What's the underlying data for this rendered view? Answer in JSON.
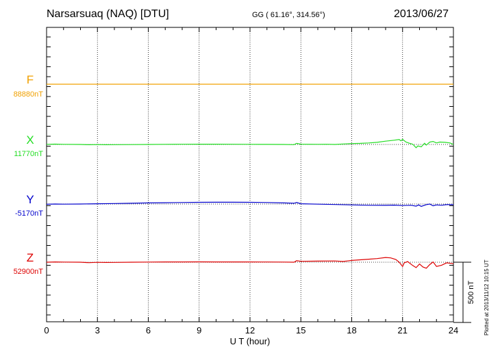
{
  "header": {
    "title": "Narsarsuaq (NAQ)  [DTU]",
    "coords": "GG ( 61.16°, 314.56°)",
    "date": "2013/06/27"
  },
  "footer": {
    "plotted": "Plotted at 2013/11/12 10:15 UT"
  },
  "colors": {
    "F": "#f0a000",
    "X": "#22dd22",
    "Y": "#0000cc",
    "Z": "#dd0000",
    "axis": "#000000"
  },
  "chart_data": {
    "type": "line",
    "title": "Narsarsuaq (NAQ)  [DTU]",
    "xlabel": "U T (hour)",
    "xlim": [
      0,
      24
    ],
    "xticks": [
      0,
      3,
      6,
      9,
      12,
      15,
      18,
      21,
      24
    ],
    "grid": true,
    "scale_bar": {
      "label": "500 nT",
      "value_nT": 500
    },
    "series": [
      {
        "name": "F",
        "baseline_label": "88880nT",
        "baseline": 88880,
        "color": "#f0a000",
        "x": [
          0,
          24
        ],
        "dev": [
          0,
          0
        ]
      },
      {
        "name": "X",
        "baseline_label": "11770nT",
        "baseline": 11770,
        "color": "#22dd22",
        "x": [
          0,
          0.5,
          1,
          2,
          2.5,
          3,
          3.5,
          4,
          5,
          6,
          7,
          8,
          9,
          10,
          11,
          12,
          13,
          14,
          14.6,
          14.75,
          15,
          16,
          16.5,
          17,
          17.5,
          18,
          18.5,
          19,
          19.5,
          20,
          20.5,
          20.8,
          20.9,
          21,
          21.2,
          21.4,
          21.6,
          21.8,
          21.9,
          22.1,
          22.3,
          22.4,
          22.6,
          22.8,
          23,
          23.2,
          23.5,
          23.8,
          24
        ],
        "dev": [
          2,
          6,
          2,
          0,
          -5,
          -2,
          -5,
          -3,
          -2,
          0,
          2,
          3,
          4,
          4,
          3,
          2,
          1,
          0,
          -3,
          18,
          5,
          2,
          3,
          0,
          8,
          15,
          18,
          25,
          35,
          55,
          70,
          82,
          60,
          85,
          40,
          20,
          5,
          -55,
          -25,
          -40,
          20,
          -10,
          40,
          50,
          25,
          40,
          35,
          25,
          0
        ]
      },
      {
        "name": "Y",
        "baseline_label": "-5170nT",
        "baseline": -5170,
        "color": "#0000cc",
        "x": [
          0,
          0.5,
          1,
          2,
          3,
          4,
          5,
          6,
          7,
          8,
          9,
          10,
          11,
          12,
          13,
          14,
          14.6,
          14.75,
          15,
          16,
          17,
          18,
          19,
          20,
          20.5,
          21,
          21.5,
          21.8,
          21.95,
          22.1,
          22.4,
          22.6,
          22.8,
          23,
          23.3,
          23.6,
          24
        ],
        "dev": [
          -5,
          0,
          -2,
          0,
          5,
          8,
          12,
          18,
          22,
          25,
          28,
          30,
          30,
          28,
          25,
          18,
          12,
          25,
          5,
          -2,
          -8,
          -15,
          -20,
          -22,
          -18,
          -25,
          -20,
          -35,
          -15,
          -40,
          -10,
          0,
          -30,
          -15,
          -20,
          -10,
          -10
        ]
      },
      {
        "name": "Z",
        "baseline_label": "52900nT",
        "baseline": 52900,
        "color": "#dd0000",
        "x": [
          0,
          0.5,
          1,
          2,
          2.5,
          3,
          3.5,
          4,
          5,
          6,
          7,
          8,
          9,
          10,
          11,
          12,
          13,
          14,
          14.6,
          14.75,
          15,
          16,
          17,
          17.5,
          18,
          18.5,
          19,
          19.5,
          20,
          20.3,
          20.6,
          20.8,
          21,
          21.1,
          21.3,
          21.6,
          21.8,
          22,
          22.2,
          22.4,
          22.6,
          22.8,
          23,
          23.3,
          23.6,
          24
        ],
        "dev": [
          0,
          5,
          2,
          0,
          -8,
          -2,
          -5,
          -3,
          0,
          2,
          4,
          5,
          6,
          5,
          4,
          4,
          3,
          2,
          0,
          25,
          15,
          18,
          20,
          12,
          30,
          40,
          50,
          60,
          78,
          72,
          45,
          0,
          -70,
          -10,
          10,
          -55,
          -90,
          -30,
          -80,
          -100,
          -40,
          5,
          -70,
          -50,
          -10,
          -25
        ]
      }
    ]
  }
}
